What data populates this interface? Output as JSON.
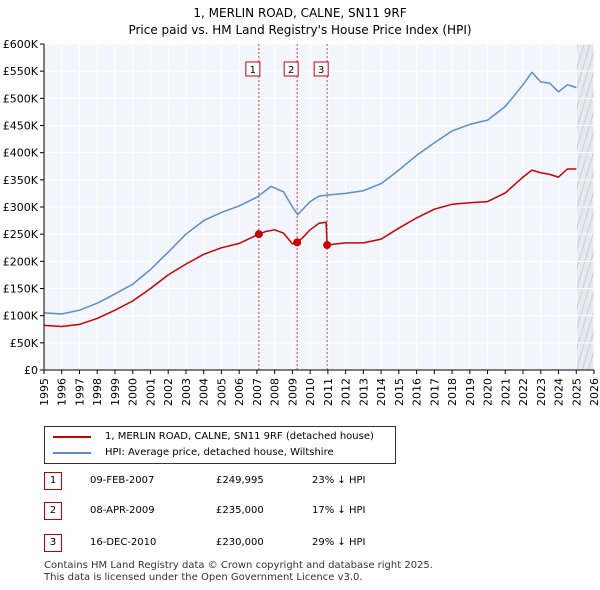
{
  "chart_data": {
    "type": "line",
    "title": "1, MERLIN ROAD, CALNE, SN11 9RF",
    "subtitle": "Price paid vs. HM Land Registry's House Price Index (HPI)",
    "xlabel": "",
    "ylabel": "",
    "xlim": [
      1995,
      2026
    ],
    "ylim": [
      0,
      600000
    ],
    "x_ticks": [
      1995,
      1996,
      1997,
      1998,
      1999,
      2000,
      2001,
      2002,
      2003,
      2004,
      2005,
      2006,
      2007,
      2008,
      2009,
      2010,
      2011,
      2012,
      2013,
      2014,
      2015,
      2016,
      2017,
      2018,
      2019,
      2020,
      2021,
      2022,
      2023,
      2024,
      2025,
      2026
    ],
    "y_ticks": [
      {
        "value": 0,
        "label": "£0"
      },
      {
        "value": 50000,
        "label": "£50K"
      },
      {
        "value": 100000,
        "label": "£100K"
      },
      {
        "value": 150000,
        "label": "£150K"
      },
      {
        "value": 200000,
        "label": "£200K"
      },
      {
        "value": 250000,
        "label": "£250K"
      },
      {
        "value": 300000,
        "label": "£300K"
      },
      {
        "value": 350000,
        "label": "£350K"
      },
      {
        "value": 400000,
        "label": "£400K"
      },
      {
        "value": 450000,
        "label": "£450K"
      },
      {
        "value": 500000,
        "label": "£500K"
      },
      {
        "value": 550000,
        "label": "£550K"
      },
      {
        "value": 600000,
        "label": "£600K"
      }
    ],
    "grid": true,
    "legend_position": "bottom-left",
    "series": [
      {
        "name": "1, MERLIN ROAD, CALNE, SN11 9RF (detached house)",
        "color": "#cc0000",
        "x": [
          1995.0,
          1996.0,
          1997.0,
          1998.0,
          1999.0,
          2000.0,
          2001.0,
          2002.0,
          2003.0,
          2004.0,
          2005.0,
          2006.0,
          2007.1,
          2007.5,
          2008.0,
          2008.5,
          2009.0,
          2009.27,
          2009.6,
          2010.0,
          2010.5,
          2010.9,
          2010.96,
          2011.5,
          2012.0,
          2013.0,
          2014.0,
          2015.0,
          2016.0,
          2017.0,
          2018.0,
          2019.0,
          2020.0,
          2021.0,
          2022.0,
          2022.5,
          2023.0,
          2023.5,
          2024.0,
          2024.5,
          2025.0
        ],
        "values": [
          82000,
          80000,
          84000,
          95000,
          110000,
          127000,
          150000,
          175000,
          195000,
          213000,
          225000,
          233000,
          250000,
          255000,
          258000,
          252000,
          232000,
          235000,
          244000,
          258000,
          270000,
          272000,
          230000,
          232000,
          234000,
          234000,
          241000,
          261000,
          280000,
          296000,
          305000,
          308000,
          310000,
          326000,
          355000,
          368000,
          363000,
          360000,
          355000,
          370000,
          370000
        ]
      },
      {
        "name": "HPI: Average price, detached house, Wiltshire",
        "color": "#5b8ccf",
        "x": [
          1995.0,
          1996.0,
          1997.0,
          1998.0,
          1999.0,
          2000.0,
          2001.0,
          2002.0,
          2003.0,
          2004.0,
          2005.0,
          2006.0,
          2007.0,
          2007.8,
          2008.5,
          2009.0,
          2009.3,
          2010.0,
          2010.5,
          2011.0,
          2012.0,
          2013.0,
          2014.0,
          2015.0,
          2016.0,
          2017.0,
          2018.0,
          2019.0,
          2020.0,
          2021.0,
          2022.0,
          2022.5,
          2023.0,
          2023.5,
          2024.0,
          2024.5,
          2025.0
        ],
        "values": [
          105000,
          103000,
          110000,
          123000,
          140000,
          158000,
          185000,
          217000,
          250000,
          275000,
          290000,
          302000,
          318000,
          338000,
          328000,
          300000,
          286000,
          310000,
          320000,
          322000,
          325000,
          330000,
          343000,
          368000,
          395000,
          418000,
          440000,
          452000,
          460000,
          485000,
          525000,
          548000,
          530000,
          528000,
          512000,
          525000,
          520000
        ]
      }
    ],
    "sales": [
      {
        "id": "1",
        "x": 2007.11,
        "value": 249995
      },
      {
        "id": "2",
        "x": 2009.27,
        "value": 235000
      },
      {
        "id": "3",
        "x": 2010.96,
        "value": 230000
      }
    ],
    "forecast_start": 2025.0
  },
  "legend": {
    "property_label": "1, MERLIN ROAD, CALNE, SN11 9RF (detached house)",
    "hpi_label": "HPI: Average price, detached house, Wiltshire",
    "property_color": "#cc0000",
    "hpi_color": "#5b8ccf"
  },
  "sales_table": [
    {
      "id": "1",
      "date": "09-FEB-2007",
      "price": "£249,995",
      "hpi": "23% ↓ HPI"
    },
    {
      "id": "2",
      "date": "08-APR-2009",
      "price": "£235,000",
      "hpi": "17% ↓ HPI"
    },
    {
      "id": "3",
      "date": "16-DEC-2010",
      "price": "£230,000",
      "hpi": "29% ↓ HPI"
    }
  ],
  "footer": {
    "line1": "Contains HM Land Registry data © Crown copyright and database right 2025.",
    "line2": "This data is licensed under the Open Government Licence v3.0."
  }
}
